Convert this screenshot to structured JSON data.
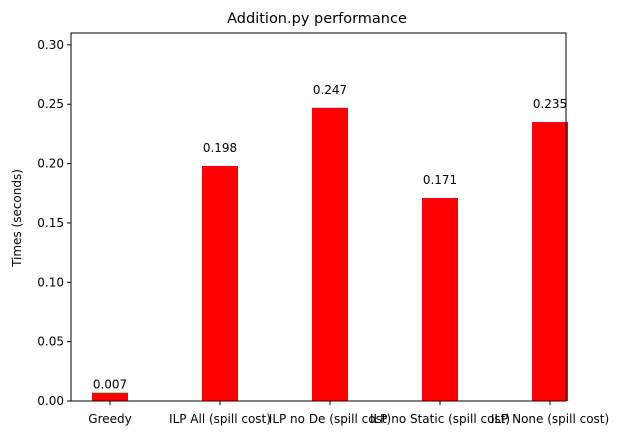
{
  "chart_data": {
    "type": "bar",
    "title": "Addition.py performance",
    "xlabel": "",
    "ylabel": "Times (seconds)",
    "categories": [
      "Greedy",
      "ILP All (spill cost)",
      "ILP no De (spill cost)",
      "ILP no Static (spill cost)",
      "ILP None (spill cost)"
    ],
    "values": [
      0.007,
      0.198,
      0.247,
      0.171,
      0.235
    ],
    "data_labels": [
      "0.007",
      "0.198",
      "0.247",
      "0.171",
      "0.235"
    ],
    "ylim": [
      0,
      0.31
    ],
    "yticks": [
      0.0,
      0.05,
      0.1,
      0.15,
      0.2,
      0.25,
      0.3
    ],
    "ytick_labels": [
      "0.00",
      "0.05",
      "0.10",
      "0.15",
      "0.20",
      "0.25",
      "0.30"
    ],
    "bar_color": "#ff0000",
    "grid": false,
    "legend": "none"
  }
}
